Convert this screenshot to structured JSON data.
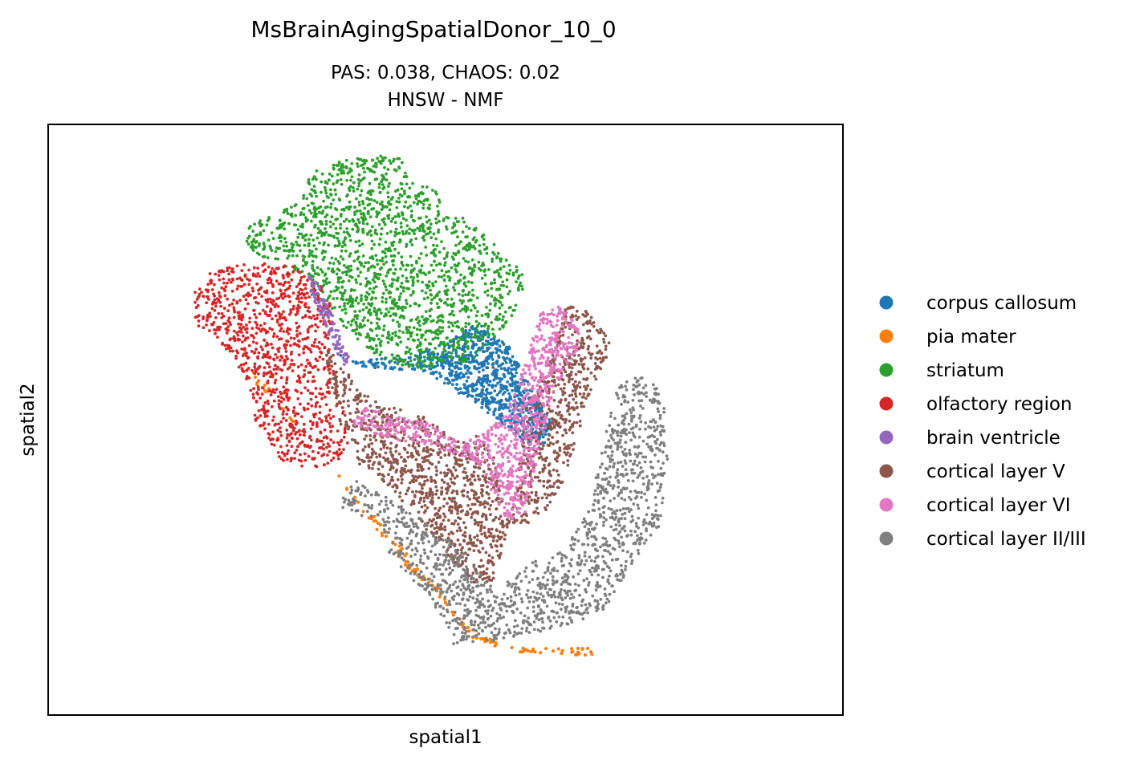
{
  "chart_data": {
    "type": "scatter",
    "title": "MsBrainAgingSpatialDonor_10_0",
    "subtitle_line1": "PAS: 0.038,  CHAOS: 0.02",
    "subtitle_line2": "HNSW - NMF",
    "xlabel": "spatial1",
    "ylabel": "spatial2",
    "xlim": [
      0,
      1000
    ],
    "ylim": [
      0,
      750
    ],
    "axis_ticks": "none",
    "grid": false,
    "legend_placement": "right-center",
    "series": [
      {
        "name": "corpus callosum",
        "color": "#1f77b4",
        "point_count": 900,
        "region": [
          [
            358,
            462
          ],
          [
            400,
            440
          ],
          [
            470,
            438
          ],
          [
            530,
            400
          ],
          [
            580,
            365
          ],
          [
            600,
            345
          ],
          [
            625,
            345
          ],
          [
            637,
            370
          ],
          [
            610,
            410
          ],
          [
            580,
            470
          ],
          [
            540,
            498
          ],
          [
            505,
            475
          ],
          [
            450,
            455
          ],
          [
            380,
            450
          ]
        ]
      },
      {
        "name": "pia mater",
        "color": "#ff7f0e",
        "point_count": 520,
        "region": [
          [
            250,
            460
          ],
          [
            262,
            420
          ],
          [
            285,
            400
          ],
          [
            318,
            360
          ],
          [
            345,
            330
          ],
          [
            380,
            280
          ],
          [
            410,
            240
          ],
          [
            440,
            200
          ],
          [
            470,
            170
          ],
          [
            500,
            140
          ],
          [
            530,
            100
          ],
          [
            570,
            80
          ],
          [
            690,
            75
          ],
          [
            695,
            85
          ],
          [
            620,
            85
          ],
          [
            540,
            100
          ],
          [
            510,
            130
          ],
          [
            490,
            165
          ],
          [
            460,
            195
          ],
          [
            430,
            230
          ],
          [
            400,
            265
          ],
          [
            365,
            305
          ],
          [
            330,
            345
          ],
          [
            300,
            385
          ],
          [
            270,
            425
          ]
        ]
      },
      {
        "name": "striatum",
        "color": "#2ca02c",
        "point_count": 1700,
        "region": [
          [
            395,
            710
          ],
          [
            445,
            710
          ],
          [
            455,
            680
          ],
          [
            490,
            665
          ],
          [
            510,
            640
          ],
          [
            530,
            625
          ],
          [
            560,
            600
          ],
          [
            590,
            570
          ],
          [
            600,
            555
          ],
          [
            600,
            540
          ],
          [
            580,
            500
          ],
          [
            545,
            460
          ],
          [
            520,
            445
          ],
          [
            470,
            438
          ],
          [
            420,
            450
          ],
          [
            375,
            490
          ],
          [
            350,
            520
          ],
          [
            320,
            560
          ],
          [
            250,
            590
          ],
          [
            250,
            620
          ],
          [
            290,
            640
          ],
          [
            320,
            660
          ],
          [
            330,
            690
          ],
          [
            350,
            700
          ]
        ]
      },
      {
        "name": "olfactory region",
        "color": "#d62728",
        "point_count": 1000,
        "region": [
          [
            180,
            530
          ],
          [
            185,
            495
          ],
          [
            215,
            475
          ],
          [
            248,
            430
          ],
          [
            262,
            370
          ],
          [
            290,
            325
          ],
          [
            330,
            310
          ],
          [
            380,
            330
          ],
          [
            375,
            360
          ],
          [
            372,
            395
          ],
          [
            360,
            420
          ],
          [
            365,
            450
          ],
          [
            350,
            470
          ],
          [
            360,
            500
          ],
          [
            352,
            540
          ],
          [
            330,
            560
          ],
          [
            315,
            570
          ],
          [
            250,
            575
          ],
          [
            200,
            560
          ]
        ]
      },
      {
        "name": "brain ventricle",
        "color": "#9467bd",
        "point_count": 110,
        "region": [
          [
            330,
            560
          ],
          [
            340,
            545
          ],
          [
            352,
            520
          ],
          [
            362,
            498
          ],
          [
            372,
            470
          ],
          [
            380,
            450
          ],
          [
            373,
            442
          ],
          [
            360,
            465
          ],
          [
            348,
            495
          ],
          [
            335,
            525
          ],
          [
            325,
            550
          ]
        ]
      },
      {
        "name": "cortical layer V",
        "color": "#8c564b",
        "point_count": 1600,
        "region": [
          [
            345,
            470
          ],
          [
            372,
            445
          ],
          [
            390,
            410
          ],
          [
            440,
            390
          ],
          [
            470,
            380
          ],
          [
            500,
            360
          ],
          [
            520,
            345
          ],
          [
            540,
            355
          ],
          [
            560,
            330
          ],
          [
            570,
            290
          ],
          [
            580,
            240
          ],
          [
            595,
            240
          ],
          [
            620,
            250
          ],
          [
            650,
            300
          ],
          [
            680,
            400
          ],
          [
            710,
            470
          ],
          [
            690,
            500
          ],
          [
            670,
            520
          ],
          [
            650,
            520
          ],
          [
            640,
            470
          ],
          [
            600,
            390
          ],
          [
            590,
            300
          ],
          [
            570,
            200
          ],
          [
            560,
            170
          ],
          [
            540,
            165
          ],
          [
            520,
            180
          ],
          [
            480,
            230
          ],
          [
            430,
            290
          ],
          [
            390,
            320
          ],
          [
            370,
            360
          ]
        ]
      },
      {
        "name": "cortical layer VI",
        "color": "#e377c2",
        "point_count": 900,
        "region": [
          [
            380,
            370
          ],
          [
            430,
            350
          ],
          [
            470,
            345
          ],
          [
            500,
            335
          ],
          [
            540,
            320
          ],
          [
            560,
            280
          ],
          [
            580,
            240
          ],
          [
            600,
            255
          ],
          [
            615,
            320
          ],
          [
            625,
            360
          ],
          [
            640,
            420
          ],
          [
            670,
            470
          ],
          [
            665,
            500
          ],
          [
            640,
            520
          ],
          [
            620,
            510
          ],
          [
            610,
            480
          ],
          [
            600,
            445
          ],
          [
            575,
            380
          ],
          [
            545,
            355
          ],
          [
            520,
            345
          ],
          [
            480,
            370
          ],
          [
            440,
            380
          ],
          [
            400,
            390
          ]
        ]
      },
      {
        "name": "cortical layer II/III",
        "color": "#7f7f7f",
        "point_count": 1400,
        "region": [
          [
            355,
            265
          ],
          [
            380,
            260
          ],
          [
            420,
            240
          ],
          [
            430,
            200
          ],
          [
            460,
            170
          ],
          [
            500,
            120
          ],
          [
            510,
            90
          ],
          [
            560,
            95
          ],
          [
            640,
            110
          ],
          [
            700,
            130
          ],
          [
            740,
            200
          ],
          [
            770,
            240
          ],
          [
            780,
            330
          ],
          [
            775,
            390
          ],
          [
            760,
            430
          ],
          [
            720,
            430
          ],
          [
            700,
            350
          ],
          [
            680,
            260
          ],
          [
            650,
            210
          ],
          [
            600,
            190
          ],
          [
            560,
            160
          ],
          [
            520,
            210
          ],
          [
            470,
            250
          ],
          [
            420,
            280
          ],
          [
            390,
            300
          ]
        ]
      }
    ]
  }
}
